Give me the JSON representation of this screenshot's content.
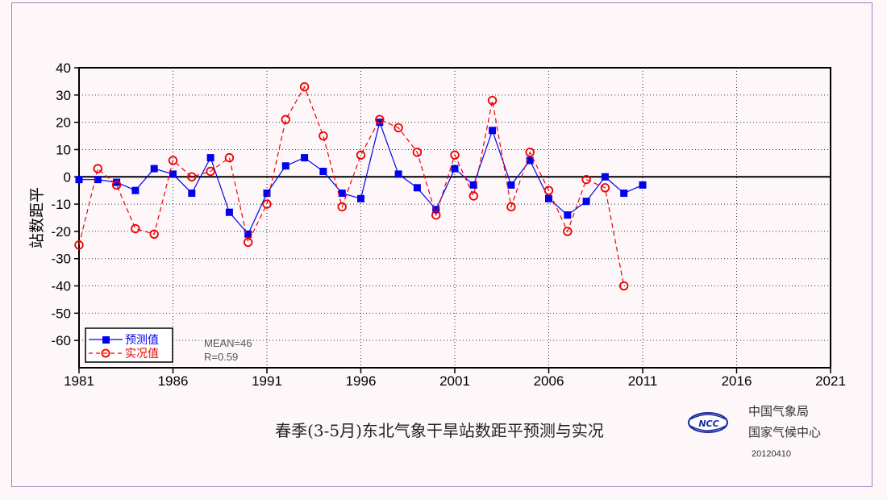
{
  "chart_data": {
    "type": "line",
    "title": "春季(3-5月)东北气象干旱站数距平预测与实况",
    "ylabel": "站数距平",
    "xlabel": "",
    "xlim": [
      1981,
      2021
    ],
    "ylim": [
      -70,
      40
    ],
    "xticks": [
      1981,
      1986,
      1991,
      1996,
      2001,
      2006,
      2011,
      2016,
      2021
    ],
    "yticks": [
      40,
      30,
      20,
      10,
      0,
      -10,
      -20,
      -30,
      -40,
      -50,
      -60
    ],
    "grid": true,
    "legend_position": "bottom-left",
    "series": [
      {
        "name": "预测值",
        "color": "#0000ee",
        "style": "solid",
        "marker": "square",
        "x": [
          1981,
          1982,
          1983,
          1984,
          1985,
          1986,
          1987,
          1988,
          1989,
          1990,
          1991,
          1992,
          1993,
          1994,
          1995,
          1996,
          1997,
          1998,
          1999,
          2000,
          2001,
          2002,
          2003,
          2004,
          2005,
          2006,
          2007,
          2008,
          2009,
          2010,
          2011
        ],
        "values": [
          -1,
          -1,
          -2,
          -5,
          3,
          1,
          -6,
          7,
          -13,
          -21,
          -6,
          4,
          7,
          2,
          -6,
          -8,
          20,
          1,
          -4,
          -12,
          3,
          -3,
          17,
          -3,
          6,
          -8,
          -14,
          -9,
          0,
          -6,
          -3
        ]
      },
      {
        "name": "实况值",
        "color": "#ee0000",
        "style": "dashed",
        "marker": "circle",
        "x": [
          1981,
          1982,
          1983,
          1984,
          1985,
          1986,
          1987,
          1988,
          1989,
          1990,
          1991,
          1992,
          1993,
          1994,
          1995,
          1996,
          1997,
          1998,
          1999,
          2000,
          2001,
          2002,
          2003,
          2004,
          2005,
          2006,
          2007,
          2008,
          2009,
          2010
        ],
        "values": [
          -25,
          3,
          -3,
          -19,
          -21,
          6,
          0,
          2,
          7,
          -24,
          -10,
          21,
          33,
          15,
          -11,
          8,
          21,
          18,
          9,
          -14,
          8,
          -7,
          28,
          -11,
          9,
          -5,
          -20,
          -1,
          -4,
          -40
        ]
      }
    ],
    "annotations": {
      "mean": "MEAN=46",
      "r": "R=0.59"
    }
  },
  "org": {
    "line1": "中国气象局",
    "line2": "国家气候中心",
    "date": "20120410",
    "logo_text": "NCC"
  }
}
